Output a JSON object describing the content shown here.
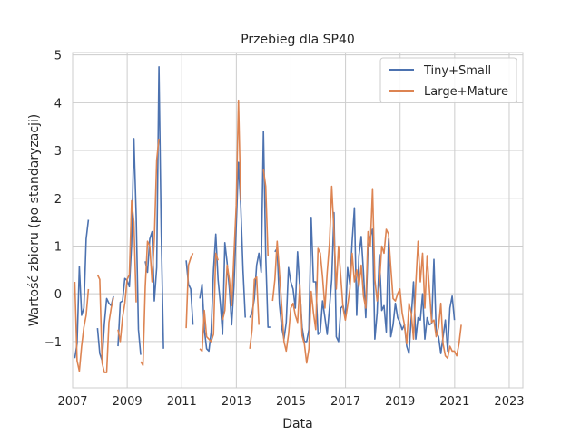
{
  "chart_data": {
    "type": "line",
    "title": "Przebieg dla SP40",
    "xlabel": "Data",
    "ylabel": "Wartość zbioru (po standaryzacji)",
    "xlim": [
      2007.0,
      2023.5
    ],
    "ylim": [
      -1.97,
      5.05
    ],
    "x_ticks": [
      2007,
      2009,
      2011,
      2013,
      2015,
      2017,
      2019,
      2021,
      2023
    ],
    "x_tick_labels": [
      "2007",
      "2009",
      "2011",
      "2013",
      "2015",
      "2017",
      "2019",
      "2021",
      "2023"
    ],
    "y_ticks": [
      -1,
      0,
      1,
      2,
      3,
      4,
      5
    ],
    "y_tick_labels": [
      "−1",
      "0",
      "1",
      "2",
      "3",
      "4",
      "5"
    ],
    "grid": true,
    "legend_position": "top-right",
    "series": [
      {
        "name": "Tiny+Small",
        "color": "#4c72b0",
        "x_start": 2007.08,
        "x_step": 0.0833,
        "values": [
          -1.35,
          -1.05,
          0.57,
          -0.45,
          -0.3,
          1.15,
          1.55,
          null,
          null,
          null,
          -0.72,
          -1.25,
          -1.4,
          -0.62,
          -0.1,
          -0.2,
          -0.25,
          -0.05,
          null,
          -1.1,
          -0.18,
          -0.15,
          0.32,
          0.28,
          0.15,
          1.05,
          3.25,
          1.65,
          -0.75,
          -1.28,
          null,
          0.68,
          0.45,
          1.15,
          1.3,
          -0.15,
          0.55,
          4.75,
          1.3,
          -1.15,
          null,
          null,
          null,
          null,
          null,
          null,
          null,
          null,
          null,
          0.7,
          0.2,
          0.1,
          -0.65,
          null,
          null,
          -0.1,
          0.2,
          -0.75,
          -1.15,
          -1.2,
          -0.8,
          0.5,
          1.25,
          0.3,
          -0.2,
          -0.85,
          1.07,
          0.65,
          0.1,
          -0.65,
          0.15,
          1.4,
          2.75,
          1.85,
          0.5,
          -0.5,
          null,
          -0.5,
          -0.4,
          -0.1,
          0.6,
          0.85,
          0.45,
          3.4,
          0.8,
          -0.7,
          -0.7,
          null,
          0.88,
          0.95,
          -0.22,
          -0.7,
          -0.95,
          -0.6,
          0.55,
          0.25,
          0.1,
          -0.3,
          0.88,
          0.1,
          -0.7,
          -1.0,
          -1.0,
          -0.75,
          1.6,
          0.25,
          0.25,
          -0.85,
          -0.8,
          -0.15,
          -0.5,
          -0.85,
          -0.3,
          0.3,
          1.7,
          -0.9,
          -1.0,
          -0.3,
          -0.25,
          -0.5,
          0.55,
          0.2,
          1.1,
          1.8,
          -0.45,
          0.8,
          1.2,
          0.45,
          -0.5,
          0.95,
          1.2,
          1.35,
          -0.95,
          -0.4,
          0.82,
          -0.35,
          -0.25,
          -0.8,
          1.15,
          -0.9,
          -0.65,
          -0.2,
          -0.5,
          -0.6,
          -0.75,
          -0.65,
          -1.1,
          -1.25,
          -0.5,
          0.25,
          -0.95,
          -0.5,
          -0.55,
          0.0,
          -0.95,
          -0.5,
          -0.65,
          -0.62,
          0.72,
          -0.8,
          -0.9,
          -1.25,
          -0.9,
          -0.55,
          -1.2,
          -0.3,
          -0.05,
          -0.55
        ]
      },
      {
        "name": "Large+Mature",
        "color": "#dd8452",
        "x_start": 2007.08,
        "x_step": 0.0833,
        "values": [
          0.25,
          -1.4,
          -1.62,
          -1.1,
          -0.7,
          -0.45,
          0.1,
          null,
          null,
          null,
          0.4,
          0.3,
          -1.45,
          -1.65,
          -1.65,
          -0.6,
          -0.3,
          -0.08,
          null,
          -0.75,
          -1.0,
          -0.5,
          -0.2,
          0.3,
          0.4,
          1.95,
          1.5,
          -0.18,
          null,
          -1.42,
          -1.5,
          0.15,
          1.1,
          1.0,
          0.25,
          1.15,
          2.8,
          3.25,
          null,
          null,
          null,
          null,
          null,
          null,
          null,
          null,
          null,
          null,
          null,
          -0.72,
          0.6,
          0.75,
          0.85,
          null,
          null,
          -1.15,
          -1.2,
          -0.35,
          -0.9,
          -0.95,
          -1.0,
          -0.85,
          0.85,
          0.7,
          null,
          -0.55,
          -0.35,
          0.6,
          0.3,
          -0.25,
          0.8,
          1.85,
          4.05,
          1.95,
          null,
          null,
          null,
          -1.15,
          -0.75,
          0.3,
          0.35,
          -0.65,
          null,
          2.6,
          2.25,
          0.8,
          null,
          -0.15,
          0.3,
          1.1,
          0.45,
          -0.25,
          -1.0,
          -1.2,
          -0.85,
          -0.3,
          -0.2,
          -0.45,
          -0.6,
          0.2,
          -0.88,
          -1.05,
          -1.45,
          -1.15,
          0.05,
          -0.4,
          -0.75,
          0.95,
          0.85,
          0.35,
          -0.3,
          0.45,
          1.05,
          2.25,
          1.3,
          0.1,
          1.0,
          0.35,
          -0.3,
          -0.55,
          -0.25,
          0.1,
          0.85,
          0.25,
          0.5,
          0.15,
          0.6,
          -0.05,
          -0.3,
          1.3,
          1.0,
          2.2,
          0.3,
          -0.15,
          0.2,
          1.0,
          0.85,
          1.35,
          1.25,
          0.55,
          -0.1,
          -0.15,
          0.0,
          0.1,
          -0.4,
          -0.65,
          -1.05,
          -0.2,
          -0.4,
          -0.95,
          0.2,
          1.1,
          0.25,
          0.85,
          -0.3,
          0.8,
          0.1,
          -0.6,
          -0.55,
          -0.9,
          -0.7,
          -0.2,
          -1.05,
          -1.3,
          -1.35,
          -1.1,
          -1.2,
          -1.2,
          -1.3,
          -1.05,
          -0.65
        ]
      }
    ]
  }
}
